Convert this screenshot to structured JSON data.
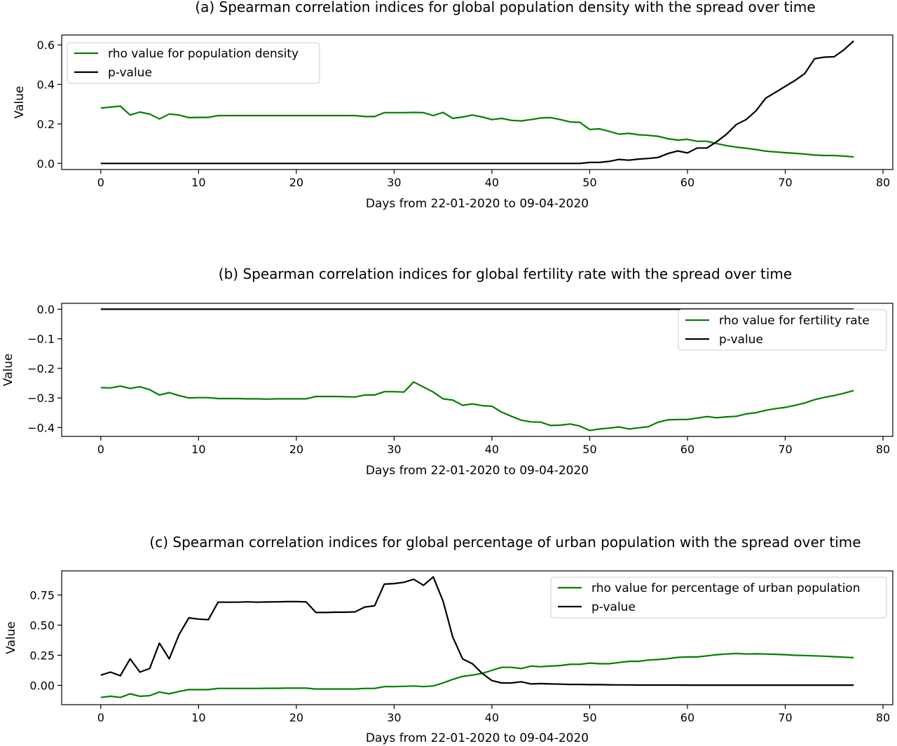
{
  "chart_data": [
    {
      "type": "line",
      "title": "(a) Spearman correlation indices for global population density with the spread over time",
      "xlabel": "Days from 22-01-2020 to 09-04-2020",
      "ylabel": "Value",
      "xlim": [
        -4,
        81
      ],
      "ylim": [
        -0.031,
        0.65
      ],
      "xticks": [
        0,
        10,
        20,
        30,
        40,
        50,
        60,
        70,
        80
      ],
      "yticks": [
        0.0,
        0.2,
        0.4,
        0.6
      ],
      "ytick_labels": [
        "0.0",
        "0.2",
        "0.4",
        "0.6"
      ],
      "grid": false,
      "legend": "upper left",
      "series": [
        {
          "name": "rho value for population density",
          "color": "#008000",
          "x": [
            0,
            1,
            2,
            3,
            4,
            5,
            6,
            7,
            8,
            9,
            10,
            11,
            12,
            13,
            14,
            15,
            16,
            17,
            18,
            19,
            20,
            21,
            22,
            23,
            24,
            25,
            26,
            27,
            28,
            29,
            30,
            31,
            32,
            33,
            34,
            35,
            36,
            37,
            38,
            39,
            40,
            41,
            42,
            43,
            44,
            45,
            46,
            47,
            48,
            49,
            50,
            51,
            52,
            53,
            54,
            55,
            56,
            57,
            58,
            59,
            60,
            61,
            62,
            63,
            64,
            65,
            66,
            67,
            68,
            69,
            70,
            71,
            72,
            73,
            74,
            75,
            76,
            77
          ],
          "y": [
            0.28,
            0.285,
            0.29,
            0.245,
            0.26,
            0.25,
            0.225,
            0.25,
            0.245,
            0.232,
            0.233,
            0.233,
            0.242,
            0.242,
            0.242,
            0.242,
            0.242,
            0.242,
            0.242,
            0.242,
            0.242,
            0.242,
            0.242,
            0.242,
            0.242,
            0.242,
            0.242,
            0.237,
            0.237,
            0.257,
            0.257,
            0.257,
            0.258,
            0.257,
            0.242,
            0.258,
            0.228,
            0.235,
            0.245,
            0.235,
            0.222,
            0.228,
            0.218,
            0.215,
            0.222,
            0.23,
            0.232,
            0.222,
            0.21,
            0.208,
            0.172,
            0.175,
            0.162,
            0.148,
            0.152,
            0.145,
            0.142,
            0.137,
            0.125,
            0.118,
            0.122,
            0.112,
            0.112,
            0.1,
            0.09,
            0.082,
            0.077,
            0.07,
            0.062,
            0.058,
            0.054,
            0.051,
            0.047,
            0.042,
            0.04,
            0.04,
            0.037,
            0.033
          ]
        },
        {
          "name": "p-value",
          "color": "#000000",
          "x": [
            0,
            10,
            20,
            30,
            40,
            45,
            49,
            50,
            51,
            52,
            53,
            54,
            55,
            56,
            57,
            58,
            59,
            60,
            61,
            62,
            63,
            64,
            65,
            66,
            67,
            68,
            69,
            70,
            71,
            72,
            73,
            74,
            75,
            76,
            77
          ],
          "y": [
            0.0,
            0.0,
            0.0,
            0.0,
            0.0,
            0.0,
            0.0,
            0.005,
            0.005,
            0.01,
            0.02,
            0.016,
            0.022,
            0.025,
            0.03,
            0.05,
            0.063,
            0.053,
            0.078,
            0.078,
            0.11,
            0.148,
            0.197,
            0.222,
            0.266,
            0.33,
            0.36,
            0.39,
            0.42,
            0.455,
            0.53,
            0.538,
            0.54,
            0.575,
            0.62
          ]
        }
      ]
    },
    {
      "type": "line",
      "title": "(b) Spearman correlation indices for global fertility rate with the spread over time",
      "xlabel": "Days from 22-01-2020 to 09-04-2020",
      "ylabel": "Value",
      "xlim": [
        -4,
        81
      ],
      "ylim": [
        -0.43,
        0.02
      ],
      "xticks": [
        0,
        10,
        20,
        30,
        40,
        50,
        60,
        70,
        80
      ],
      "yticks": [
        0.0,
        -0.1,
        -0.2,
        -0.3,
        -0.4
      ],
      "ytick_labels": [
        "0.0",
        "−0.1",
        "−0.2",
        "−0.3",
        "−0.4"
      ],
      "grid": false,
      "legend": "upper right",
      "series": [
        {
          "name": "rho value for fertility rate",
          "color": "#008000",
          "x": [
            0,
            1,
            2,
            3,
            4,
            5,
            6,
            7,
            8,
            9,
            10,
            11,
            12,
            13,
            14,
            15,
            16,
            17,
            18,
            19,
            20,
            21,
            22,
            23,
            24,
            25,
            26,
            27,
            28,
            29,
            30,
            31,
            32,
            33,
            34,
            35,
            36,
            37,
            38,
            39,
            40,
            41,
            42,
            43,
            44,
            45,
            46,
            47,
            48,
            49,
            50,
            51,
            52,
            53,
            54,
            55,
            56,
            57,
            58,
            59,
            60,
            61,
            62,
            63,
            64,
            65,
            66,
            67,
            68,
            69,
            70,
            71,
            72,
            73,
            74,
            75,
            76,
            77
          ],
          "y": [
            -0.265,
            -0.266,
            -0.26,
            -0.268,
            -0.262,
            -0.272,
            -0.29,
            -0.282,
            -0.292,
            -0.3,
            -0.299,
            -0.299,
            -0.302,
            -0.302,
            -0.302,
            -0.303,
            -0.303,
            -0.304,
            -0.303,
            -0.303,
            -0.303,
            -0.303,
            -0.295,
            -0.295,
            -0.295,
            -0.296,
            -0.297,
            -0.29,
            -0.29,
            -0.279,
            -0.279,
            -0.28,
            -0.246,
            -0.263,
            -0.28,
            -0.303,
            -0.307,
            -0.325,
            -0.32,
            -0.326,
            -0.328,
            -0.348,
            -0.362,
            -0.375,
            -0.381,
            -0.382,
            -0.393,
            -0.392,
            -0.388,
            -0.395,
            -0.41,
            -0.405,
            -0.402,
            -0.398,
            -0.405,
            -0.401,
            -0.397,
            -0.382,
            -0.374,
            -0.373,
            -0.373,
            -0.368,
            -0.363,
            -0.367,
            -0.364,
            -0.362,
            -0.354,
            -0.35,
            -0.342,
            -0.336,
            -0.332,
            -0.325,
            -0.317,
            -0.306,
            -0.298,
            -0.292,
            -0.284,
            -0.275
          ]
        },
        {
          "name": "p-value",
          "color": "#000000",
          "x": [
            0,
            77
          ],
          "y": [
            0.0,
            0.0
          ]
        }
      ]
    },
    {
      "type": "line",
      "title": "(c) Spearman correlation indices for global percentage of urban population with the spread over time",
      "xlabel": "Days from 22-01-2020 to 09-04-2020",
      "ylabel": "Value",
      "xlim": [
        -4,
        81
      ],
      "ylim": [
        -0.16,
        0.95
      ],
      "xticks": [
        0,
        10,
        20,
        30,
        40,
        50,
        60,
        70,
        80
      ],
      "yticks": [
        0.0,
        0.25,
        0.5,
        0.75
      ],
      "ytick_labels": [
        "0.00",
        "0.25",
        "0.50",
        "0.75"
      ],
      "grid": false,
      "legend": "upper right",
      "series": [
        {
          "name": "rho value for percentage of urban population",
          "color": "#008000",
          "x": [
            0,
            1,
            2,
            3,
            4,
            5,
            6,
            7,
            8,
            9,
            10,
            11,
            12,
            13,
            14,
            15,
            16,
            17,
            18,
            19,
            20,
            21,
            22,
            23,
            24,
            25,
            26,
            27,
            28,
            29,
            30,
            31,
            32,
            33,
            34,
            35,
            36,
            37,
            38,
            39,
            40,
            41,
            42,
            43,
            44,
            45,
            46,
            47,
            48,
            49,
            50,
            51,
            52,
            53,
            54,
            55,
            56,
            57,
            58,
            59,
            60,
            61,
            62,
            63,
            64,
            65,
            66,
            67,
            68,
            69,
            70,
            71,
            72,
            73,
            74,
            75,
            76,
            77
          ],
          "y": [
            -0.1,
            -0.09,
            -0.1,
            -0.07,
            -0.09,
            -0.085,
            -0.055,
            -0.07,
            -0.05,
            -0.035,
            -0.035,
            -0.035,
            -0.025,
            -0.025,
            -0.025,
            -0.025,
            -0.025,
            -0.024,
            -0.024,
            -0.023,
            -0.023,
            -0.023,
            -0.03,
            -0.03,
            -0.03,
            -0.03,
            -0.03,
            -0.025,
            -0.025,
            -0.01,
            -0.01,
            -0.008,
            -0.005,
            -0.01,
            -0.005,
            0.02,
            0.05,
            0.075,
            0.085,
            0.1,
            0.125,
            0.15,
            0.15,
            0.14,
            0.16,
            0.155,
            0.16,
            0.165,
            0.175,
            0.175,
            0.185,
            0.18,
            0.18,
            0.19,
            0.2,
            0.2,
            0.21,
            0.215,
            0.222,
            0.232,
            0.236,
            0.236,
            0.245,
            0.255,
            0.26,
            0.265,
            0.26,
            0.262,
            0.26,
            0.258,
            0.255,
            0.25,
            0.248,
            0.245,
            0.242,
            0.238,
            0.234,
            0.23
          ]
        },
        {
          "name": "p-value",
          "color": "#000000",
          "x": [
            0,
            1,
            2,
            3,
            4,
            5,
            6,
            7,
            8,
            9,
            10,
            11,
            12,
            13,
            14,
            15,
            16,
            17,
            18,
            19,
            20,
            21,
            22,
            23,
            24,
            25,
            26,
            27,
            28,
            29,
            30,
            31,
            32,
            33,
            34,
            35,
            36,
            37,
            38,
            39,
            40,
            41,
            42,
            43,
            44,
            45,
            46,
            47,
            48,
            49,
            50,
            51,
            52,
            53,
            54,
            55,
            56,
            57,
            58,
            59,
            60,
            61,
            62,
            63,
            64,
            65,
            66,
            67,
            68,
            69,
            70,
            71,
            72,
            73,
            74,
            75,
            76,
            77
          ],
          "y": [
            0.085,
            0.11,
            0.08,
            0.22,
            0.11,
            0.14,
            0.35,
            0.22,
            0.42,
            0.56,
            0.55,
            0.545,
            0.69,
            0.69,
            0.69,
            0.693,
            0.69,
            0.692,
            0.693,
            0.695,
            0.695,
            0.693,
            0.605,
            0.605,
            0.607,
            0.607,
            0.61,
            0.65,
            0.66,
            0.84,
            0.845,
            0.855,
            0.88,
            0.83,
            0.9,
            0.7,
            0.4,
            0.22,
            0.18,
            0.1,
            0.04,
            0.02,
            0.02,
            0.03,
            0.012,
            0.015,
            0.012,
            0.01,
            0.008,
            0.008,
            0.006,
            0.006,
            0.005,
            0.004,
            0.004,
            0.003,
            0.003,
            0.003,
            0.003,
            0.003,
            0.002,
            0.002,
            0.002,
            0.002,
            0.002,
            0.002,
            0.002,
            0.002,
            0.002,
            0.002,
            0.002,
            0.002,
            0.002,
            0.002,
            0.002,
            0.002,
            0.002,
            0.002
          ]
        }
      ]
    }
  ]
}
